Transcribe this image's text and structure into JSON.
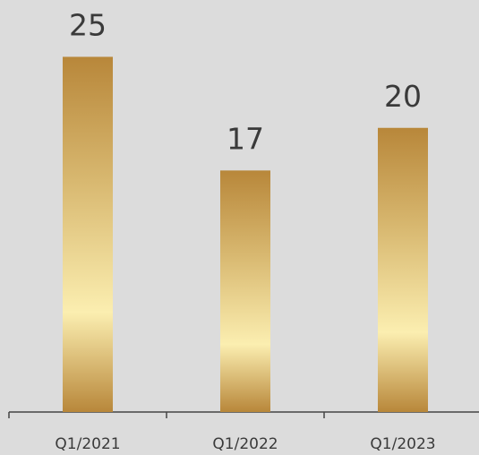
{
  "chart_data": {
    "type": "bar",
    "categories": [
      "Q1/2021",
      "Q1/2022",
      "Q1/2023"
    ],
    "values": [
      25,
      17,
      20
    ],
    "color": "#b8873a",
    "ylim": [
      0,
      29
    ]
  }
}
